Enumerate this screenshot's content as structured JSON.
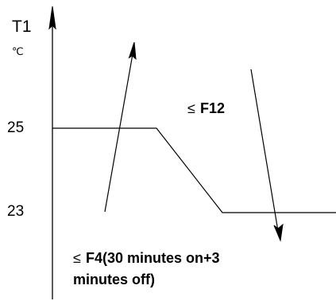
{
  "diagram": {
    "y_axis_title": "T1",
    "y_axis_unit": "℃",
    "y_tick_high": "25",
    "y_tick_low": "23",
    "annotation_top_symbol": "≤",
    "annotation_top_text": "F12",
    "annotation_bottom_symbol": "≤",
    "annotation_bottom_line1": "F4(30 minutes on+3",
    "annotation_bottom_line2": "minutes off)"
  }
}
